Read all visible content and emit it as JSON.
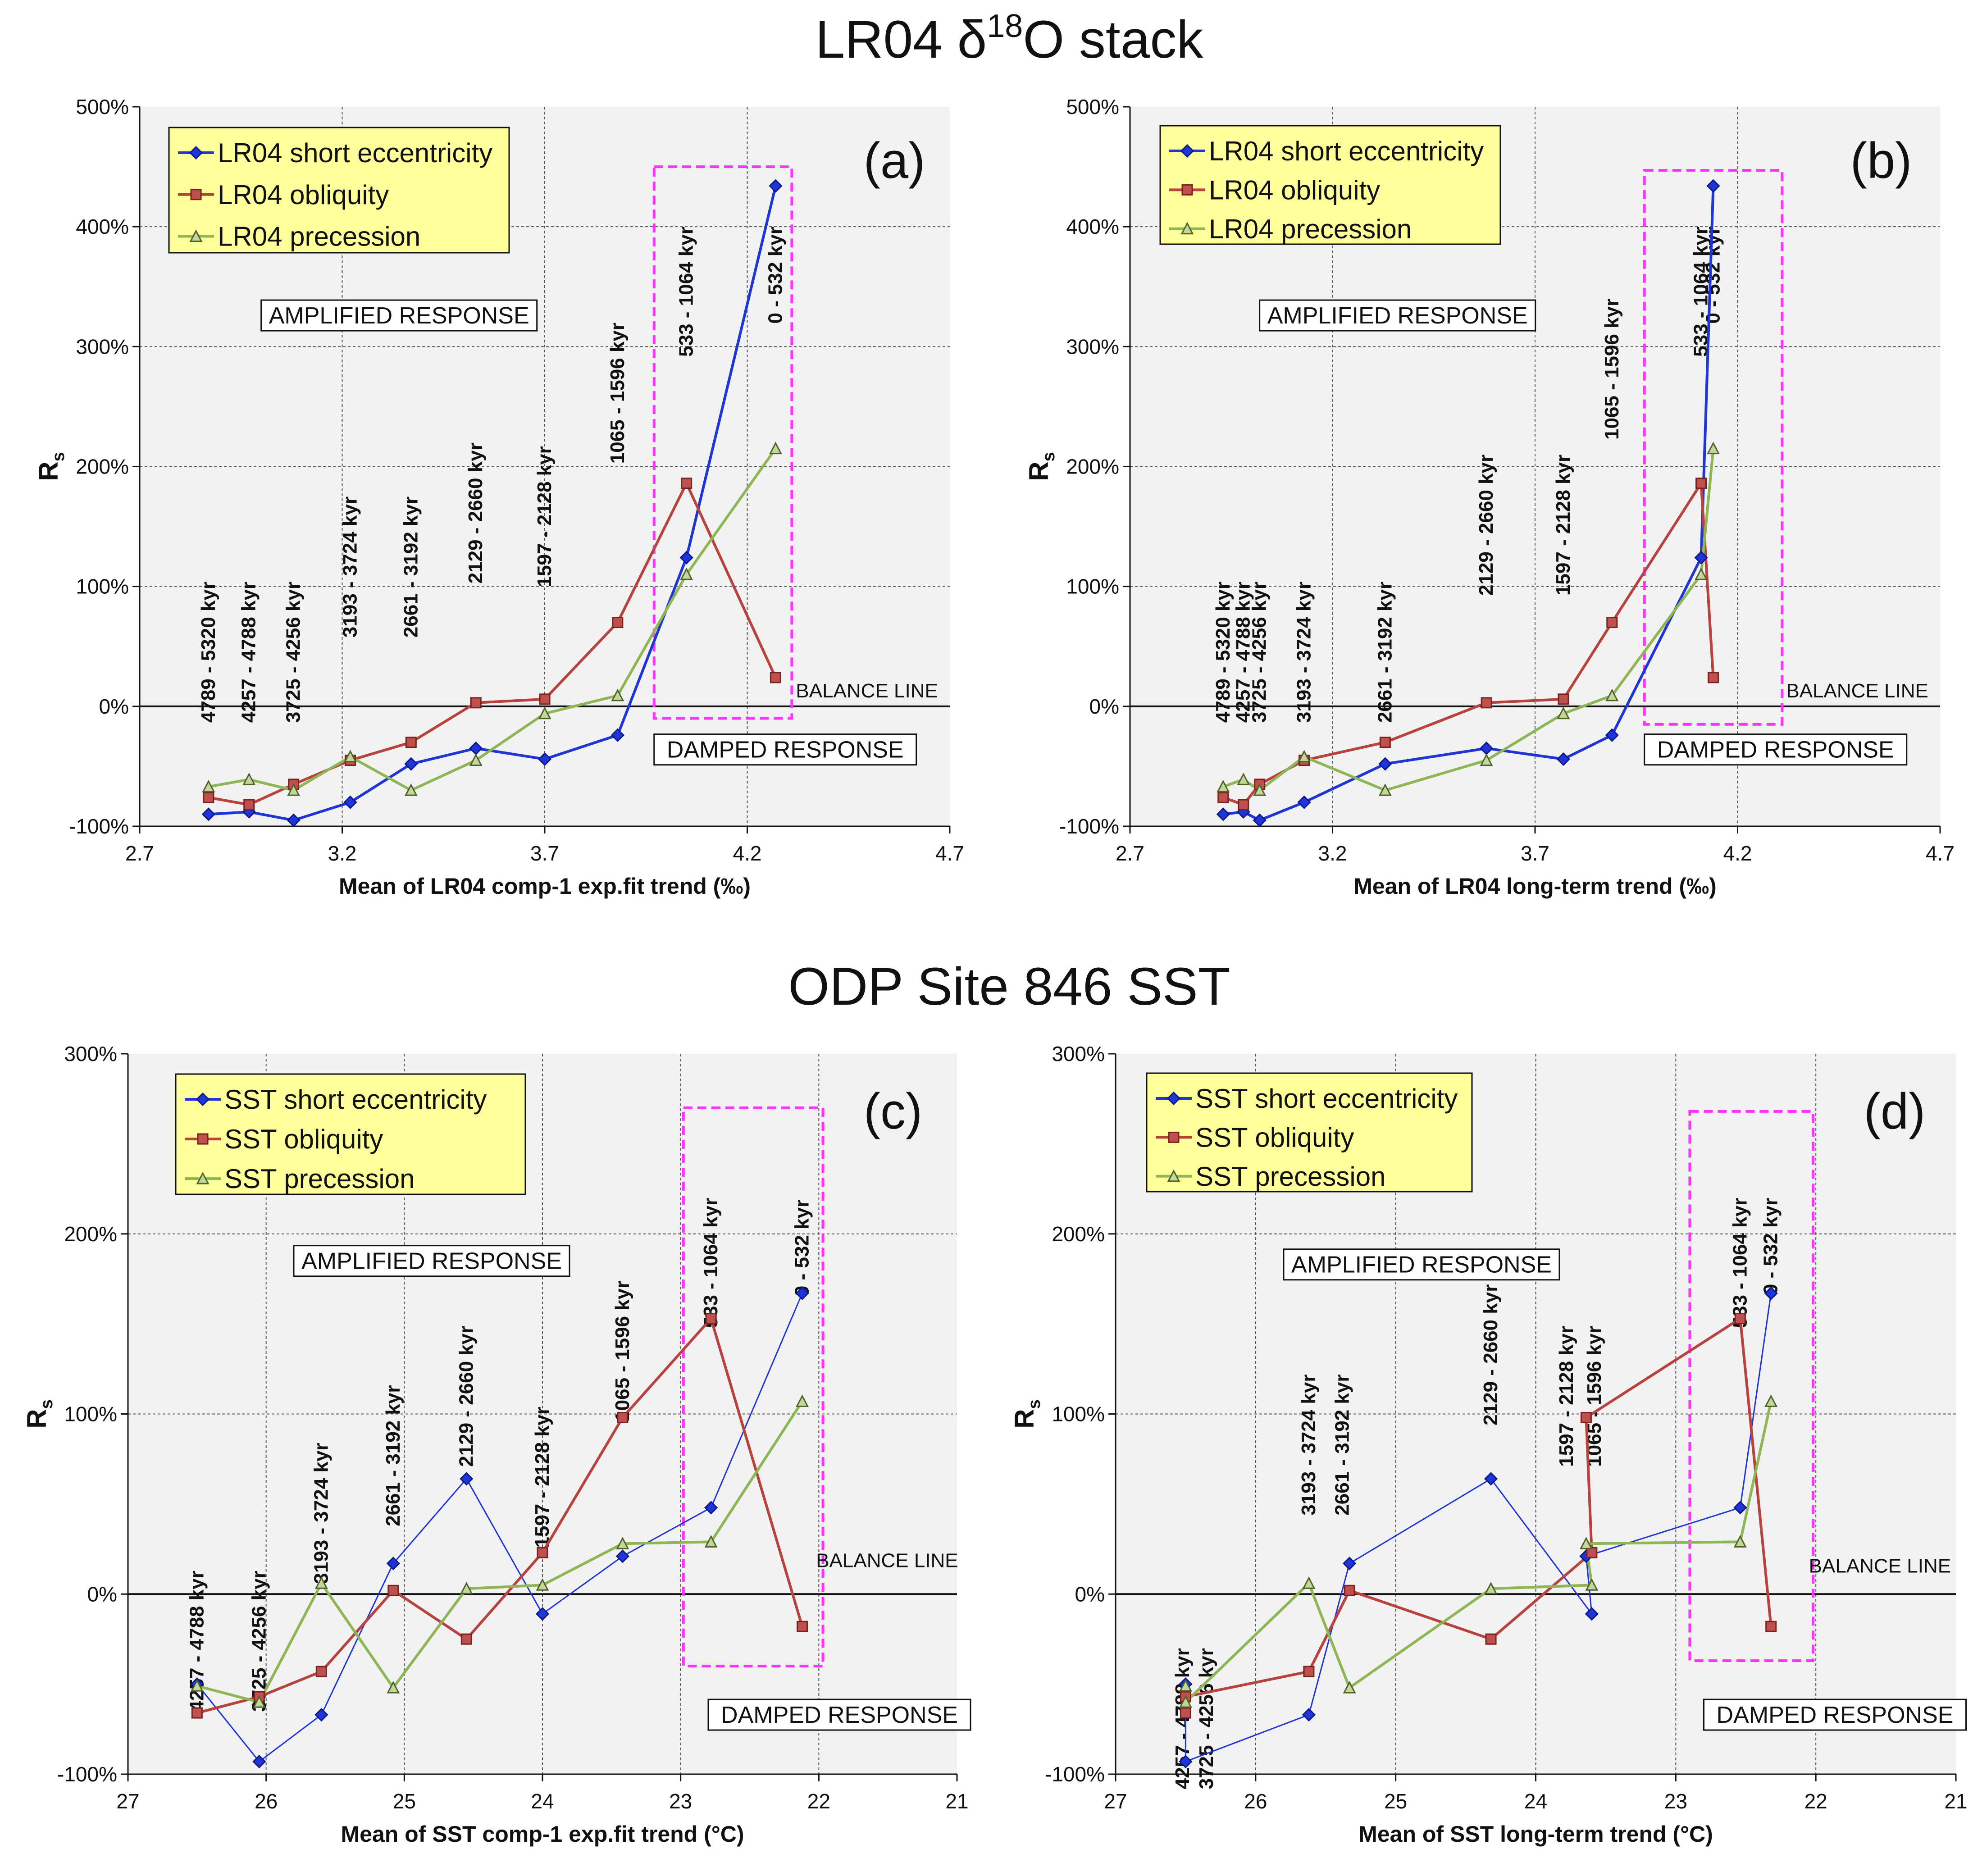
{
  "figure": {
    "top_title": "LR04 δ18O stack",
    "top_title_parts": {
      "prefix": "LR04 ",
      "delta": "δ",
      "sup": "18",
      "suffix": "O stack"
    },
    "bottom_title": "ODP Site 846 SST"
  },
  "colors": {
    "short_eccentricity": "#1f35d8",
    "obliquity": "#b8433e",
    "precession": "#8fb655",
    "highlight_box": "#ff33ff",
    "legend_bg": "#ffff99",
    "plot_bg": "#f2f2f2"
  },
  "chart_data": [
    {
      "id": "a",
      "type": "line",
      "panel_label": "(a)",
      "xlabel": "Mean of LR04 comp-1 exp.fit trend (‰)",
      "ylabel": "R",
      "ylabel_sub": "s",
      "xlim": [
        2.7,
        4.7
      ],
      "ylim": [
        -100,
        500
      ],
      "x_reversed": false,
      "x_ticks": [
        "2.7",
        "3.2",
        "3.7",
        "4.2",
        "4.7"
      ],
      "y_ticks": [
        "-100%",
        "0%",
        "100%",
        "200%",
        "300%",
        "400%",
        "500%"
      ],
      "legend": [
        "LR04 short eccentricity",
        "LR04 obliquity",
        "LR04 precession"
      ],
      "series": [
        {
          "name": "LR04 short eccentricity",
          "key": "short_eccentricity",
          "x": [
            2.87,
            2.97,
            3.08,
            3.22,
            3.37,
            3.53,
            3.7,
            3.88,
            4.05,
            4.27
          ],
          "y": [
            -90,
            -88,
            -95,
            -80,
            -48,
            -35,
            -44,
            -24,
            124,
            434
          ]
        },
        {
          "name": "LR04 obliquity",
          "key": "obliquity",
          "x": [
            2.87,
            2.97,
            3.08,
            3.22,
            3.37,
            3.53,
            3.7,
            3.88,
            4.05,
            4.27
          ],
          "y": [
            -76,
            -82,
            -65,
            -45,
            -30,
            3,
            6,
            70,
            186,
            24
          ]
        },
        {
          "name": "LR04 precession",
          "key": "precession",
          "x": [
            2.87,
            2.97,
            3.08,
            3.22,
            3.37,
            3.53,
            3.7,
            3.88,
            4.05,
            4.27
          ],
          "y": [
            -67,
            -61,
            -70,
            -42,
            -70,
            -45,
            -6,
            9,
            110,
            215
          ]
        }
      ],
      "interval_labels": [
        "4789 - 5320  kyr",
        "4257 - 4788  kyr",
        "3725 - 4256  kyr",
        "3193 - 3724  kyr",
        "2661 - 3192  kyr",
        "2129 - 2660  kyr",
        "1597 - 2128  kyr",
        "1065 - 1596  kyr",
        "533 - 1064  kyr",
        "0 - 532  kyr"
      ],
      "interval_x": [
        2.87,
        2.97,
        3.08,
        3.22,
        3.37,
        3.53,
        3.7,
        3.88,
        4.05,
        4.27
      ],
      "interval_y": [
        104,
        104,
        104,
        175,
        175,
        220,
        217,
        320,
        400,
        400
      ],
      "annotations": {
        "amplified": "AMPLIFIED RESPONSE",
        "damped": "DAMPED RESPONSE",
        "balance": "BALANCE LINE"
      },
      "amplified_at": [
        3.0,
        326
      ],
      "damped_at": [
        3.97,
        -36
      ],
      "balance_at": [
        4.32,
        0
      ],
      "highlight_range": {
        "x": [
          3.97,
          4.31
        ],
        "y": [
          -10,
          450
        ]
      }
    },
    {
      "id": "b",
      "type": "line",
      "panel_label": "(b)",
      "xlabel": "Mean of LR04 long-term trend (‰)",
      "ylabel": "R",
      "ylabel_sub": "s",
      "xlim": [
        2.7,
        4.7
      ],
      "ylim": [
        -100,
        500
      ],
      "x_reversed": false,
      "x_ticks": [
        "2.7",
        "3.2",
        "3.7",
        "4.2",
        "4.7"
      ],
      "y_ticks": [
        "-100%",
        "0%",
        "100%",
        "200%",
        "300%",
        "400%",
        "500%"
      ],
      "legend": [
        "LR04 short eccentricity",
        "LR04 obliquity",
        "LR04 precession"
      ],
      "series": [
        {
          "name": "LR04 short eccentricity",
          "key": "short_eccentricity",
          "x": [
            2.93,
            2.98,
            3.02,
            3.13,
            3.33,
            3.58,
            3.77,
            3.89,
            4.11,
            4.14
          ],
          "y": [
            -90,
            -88,
            -95,
            -80,
            -48,
            -35,
            -44,
            -24,
            124,
            434
          ]
        },
        {
          "name": "LR04 obliquity",
          "key": "obliquity",
          "x": [
            2.93,
            2.98,
            3.02,
            3.13,
            3.33,
            3.58,
            3.77,
            3.89,
            4.11,
            4.14
          ],
          "y": [
            -76,
            -82,
            -65,
            -45,
            -30,
            3,
            6,
            70,
            186,
            24
          ]
        },
        {
          "name": "LR04 precession",
          "key": "precession",
          "x": [
            2.93,
            2.98,
            3.02,
            3.13,
            3.33,
            3.58,
            3.77,
            3.89,
            4.11,
            4.14
          ],
          "y": [
            -67,
            -61,
            -70,
            -42,
            -70,
            -45,
            -6,
            9,
            110,
            215
          ]
        }
      ],
      "interval_labels": [
        "4789 - 5320  kyr",
        "4257 - 4788  kyr",
        "3725 - 4256  kyr",
        "3193 - 3724  kyr",
        "2661 - 3192  kyr",
        "2129 - 2660  kyr",
        "1597 - 2128  kyr",
        "1065 - 1596  kyr",
        "533 - 1064  kyr",
        "0 - 532  kyr"
      ],
      "interval_x": [
        2.93,
        2.98,
        3.02,
        3.13,
        3.33,
        3.58,
        3.77,
        3.89,
        4.11,
        4.14
      ],
      "interval_y": [
        104,
        104,
        104,
        104,
        104,
        210,
        210,
        340,
        400,
        400
      ],
      "annotations": {
        "amplified": "AMPLIFIED RESPONSE",
        "damped": "DAMPED RESPONSE",
        "balance": "BALANCE LINE"
      },
      "amplified_at": [
        3.02,
        326
      ],
      "damped_at": [
        3.97,
        -36
      ],
      "balance_at": [
        4.32,
        0
      ],
      "highlight_range": {
        "x": [
          3.97,
          4.31
        ],
        "y": [
          -15,
          447
        ]
      }
    },
    {
      "id": "c",
      "type": "line",
      "panel_label": "(c)",
      "xlabel": "Mean of SST comp-1 exp.fit trend (°C)",
      "ylabel": "R",
      "ylabel_sub": "s",
      "xlim": [
        27,
        21
      ],
      "ylim": [
        -100,
        300
      ],
      "x_reversed": true,
      "x_ticks": [
        "27",
        "26",
        "25",
        "24",
        "23",
        "22",
        "21"
      ],
      "y_ticks": [
        "-100%",
        "0%",
        "100%",
        "200%",
        "300%"
      ],
      "legend": [
        "SST short eccentricity",
        "SST obliquity",
        "SST precession"
      ],
      "series": [
        {
          "name": "SST short eccentricity",
          "key": "short_eccentricity",
          "x": [
            26.5,
            26.05,
            25.6,
            25.08,
            24.55,
            24.0,
            23.42,
            22.78,
            22.12
          ],
          "y": [
            -50,
            -93,
            -67,
            17,
            64,
            -11,
            21,
            48,
            167
          ]
        },
        {
          "name": "SST obliquity",
          "key": "obliquity",
          "x": [
            26.5,
            26.05,
            25.6,
            25.08,
            24.55,
            24.0,
            23.42,
            22.78,
            22.12
          ],
          "y": [
            -66,
            -57,
            -43,
            2,
            -25,
            23,
            98,
            153,
            -18
          ]
        },
        {
          "name": "SST precession",
          "key": "precession",
          "x": [
            26.5,
            26.05,
            25.6,
            25.08,
            24.55,
            24.0,
            23.42,
            22.78,
            22.12
          ],
          "y": [
            -51,
            -60,
            6,
            -52,
            3,
            5,
            28,
            29,
            107
          ]
        }
      ],
      "interval_labels": [
        "4257 - 4788  kyr",
        "3725 - 4256  kyr",
        "3193 - 3724  kyr",
        "2661 - 3192  kyr",
        "2129 - 2660  kyr",
        "1597 - 2128  kyr",
        "1065 - 1596  kyr",
        "533 - 1064  kyr",
        "0 - 532  kyr"
      ],
      "interval_x": [
        26.5,
        26.05,
        25.6,
        25.08,
        24.55,
        24.0,
        23.42,
        22.78,
        22.12
      ],
      "interval_y": [
        13,
        13,
        84,
        116,
        149,
        104,
        174,
        220,
        219
      ],
      "annotations": {
        "amplified": "AMPLIFIED RESPONSE",
        "damped": "DAMPED RESPONSE",
        "balance": "BALANCE LINE"
      },
      "amplified_at": [
        25.8,
        185
      ],
      "damped_at": [
        22.8,
        -67
      ],
      "balance_at": [
        22.02,
        10
      ],
      "highlight_range": {
        "x": [
          22.98,
          21.97
        ],
        "y": [
          -40,
          270
        ]
      }
    },
    {
      "id": "d",
      "type": "line",
      "panel_label": "(d)",
      "xlabel": "Mean of SST long-term trend (°C)",
      "ylabel": "R",
      "ylabel_sub": "s",
      "xlim": [
        27,
        21
      ],
      "ylim": [
        -100,
        300
      ],
      "x_reversed": true,
      "x_ticks": [
        "27",
        "26",
        "25",
        "24",
        "23",
        "22",
        "21"
      ],
      "y_ticks": [
        "-100%",
        "0%",
        "100%",
        "200%",
        "300%"
      ],
      "legend": [
        "SST short eccentricity",
        "SST obliquity",
        "SST precession"
      ],
      "series": [
        {
          "name": "SST short eccentricity",
          "key": "short_eccentricity",
          "x": [
            26.5,
            26.5,
            25.62,
            25.33,
            24.32,
            23.6,
            23.64,
            22.54,
            22.32
          ],
          "y": [
            -50,
            -93,
            -67,
            17,
            64,
            -11,
            21,
            48,
            167
          ]
        },
        {
          "name": "SST obliquity",
          "key": "obliquity",
          "x": [
            26.5,
            26.5,
            25.62,
            25.33,
            24.32,
            23.6,
            23.64,
            22.54,
            22.32
          ],
          "y": [
            -66,
            -57,
            -43,
            2,
            -25,
            23,
            98,
            153,
            -18
          ]
        },
        {
          "name": "SST precession",
          "key": "precession",
          "x": [
            26.5,
            26.5,
            25.62,
            25.33,
            24.32,
            23.6,
            23.64,
            22.54,
            22.32
          ],
          "y": [
            -51,
            -60,
            6,
            -52,
            3,
            5,
            28,
            29,
            107
          ]
        }
      ],
      "interval_labels": [
        "4257 - 4788  kyr",
        "3725 - 4256  kyr",
        "3193 - 3724  kyr",
        "2661 - 3192  kyr",
        "2129 - 2660  kyr",
        "1597 - 2128  kyr",
        "1065 - 1596  kyr",
        "533 - 1064  kyr",
        "0 - 532  kyr"
      ],
      "interval_x": [
        26.52,
        26.35,
        25.62,
        25.38,
        24.32,
        23.78,
        23.58,
        22.54,
        22.32
      ],
      "interval_y": [
        -30,
        -30,
        122,
        122,
        172,
        149,
        149,
        220,
        220
      ],
      "annotations": {
        "amplified": "AMPLIFIED RESPONSE",
        "damped": "DAMPED RESPONSE",
        "balance": "BALANCE LINE"
      },
      "amplified_at": [
        25.8,
        183
      ],
      "damped_at": [
        22.8,
        -67
      ],
      "balance_at": [
        22.05,
        7
      ],
      "highlight_range": {
        "x": [
          22.9,
          22.02
        ],
        "y": [
          -37,
          268
        ]
      }
    }
  ]
}
